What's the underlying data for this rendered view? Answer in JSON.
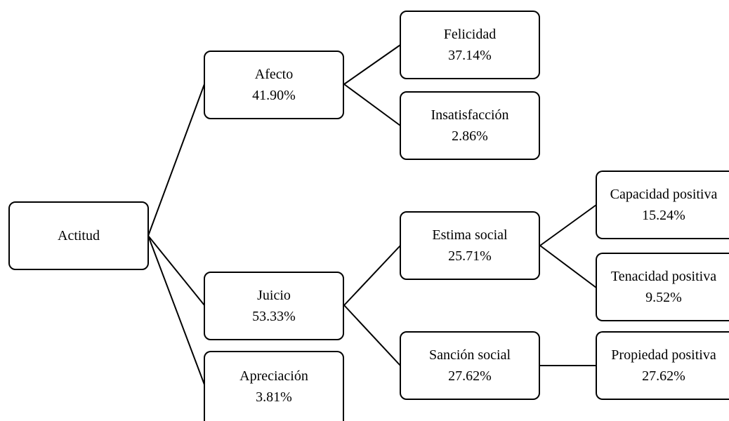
{
  "diagram": {
    "root": {
      "label": "Actitud"
    },
    "afecto": {
      "label": "Afecto",
      "value": "41.90%"
    },
    "juicio": {
      "label": "Juicio",
      "value": "53.33%"
    },
    "apreciacion": {
      "label": "Apreciación",
      "value": "3.81%"
    },
    "felicidad": {
      "label": "Felicidad",
      "value": "37.14%"
    },
    "insatisfaccion": {
      "label": "Insatisfacción",
      "value": "2.86%"
    },
    "estima_social": {
      "label": "Estima social",
      "value": "25.71%"
    },
    "sancion_social": {
      "label": "Sanción social",
      "value": "27.62%"
    },
    "capacidad_positiva": {
      "label": "Capacidad positiva",
      "value": "15.24%"
    },
    "tenacidad_positiva": {
      "label": "Tenacidad positiva",
      "value": "9.52%"
    },
    "propiedad_positiva": {
      "label": "Propiedad positiva",
      "value": "27.62%"
    }
  }
}
